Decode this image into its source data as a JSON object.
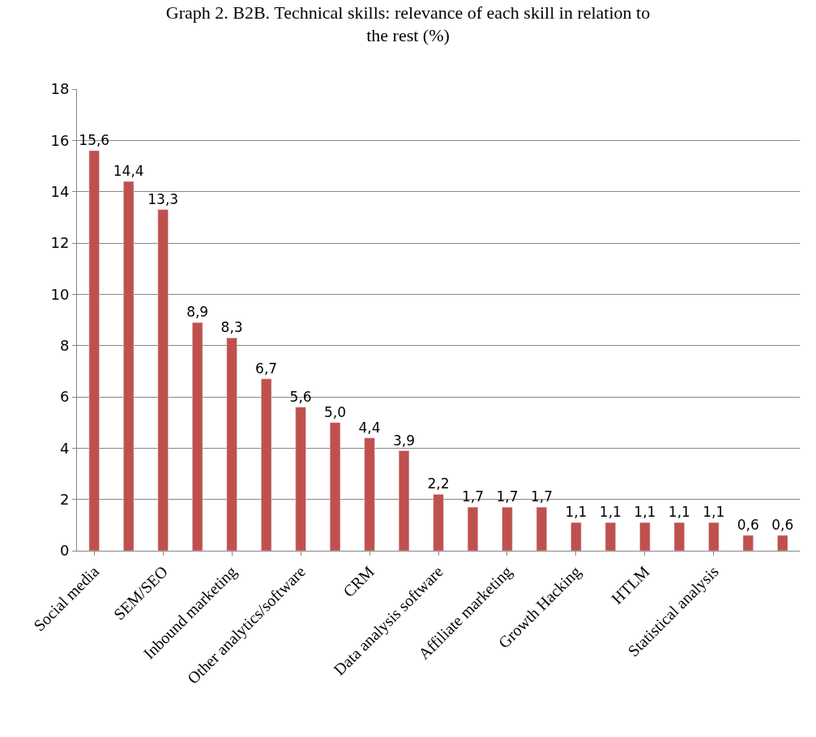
{
  "chart_data": {
    "type": "bar",
    "title": "Graph 2. B2B. Technical skills: relevance of each skill in relation to the rest (%)",
    "categories": [
      "Social media",
      null,
      "SEM/SEO",
      null,
      "Inbound marketing",
      null,
      "Other analytics/software",
      null,
      "CRM",
      null,
      "Data analysis software",
      null,
      "Affiliate marketing",
      null,
      "Growth Hacking",
      null,
      "HTLM",
      null,
      "Statistical analysis",
      null,
      null
    ],
    "values": [
      15.6,
      14.4,
      13.3,
      8.9,
      8.3,
      6.7,
      5.6,
      5.0,
      4.4,
      3.9,
      2.2,
      1.7,
      1.7,
      1.7,
      1.1,
      1.1,
      1.1,
      1.1,
      1.1,
      0.6,
      0.6
    ],
    "value_labels": [
      "15,6",
      "14,4",
      "13,3",
      "8,9",
      "8,3",
      "6,7",
      "5,6",
      "5,0",
      "4,4",
      "3,9",
      "2,2",
      "1,7",
      "1,7",
      "1,7",
      "1,1",
      "1,1",
      "1,1",
      "1,1",
      "1,1",
      "0,6",
      "0,6"
    ],
    "color": "#c0504d",
    "ylim": [
      0,
      18
    ],
    "yticks": [
      0,
      2,
      4,
      6,
      8,
      10,
      12,
      14,
      16,
      18
    ],
    "grid": "y",
    "legend": false
  }
}
